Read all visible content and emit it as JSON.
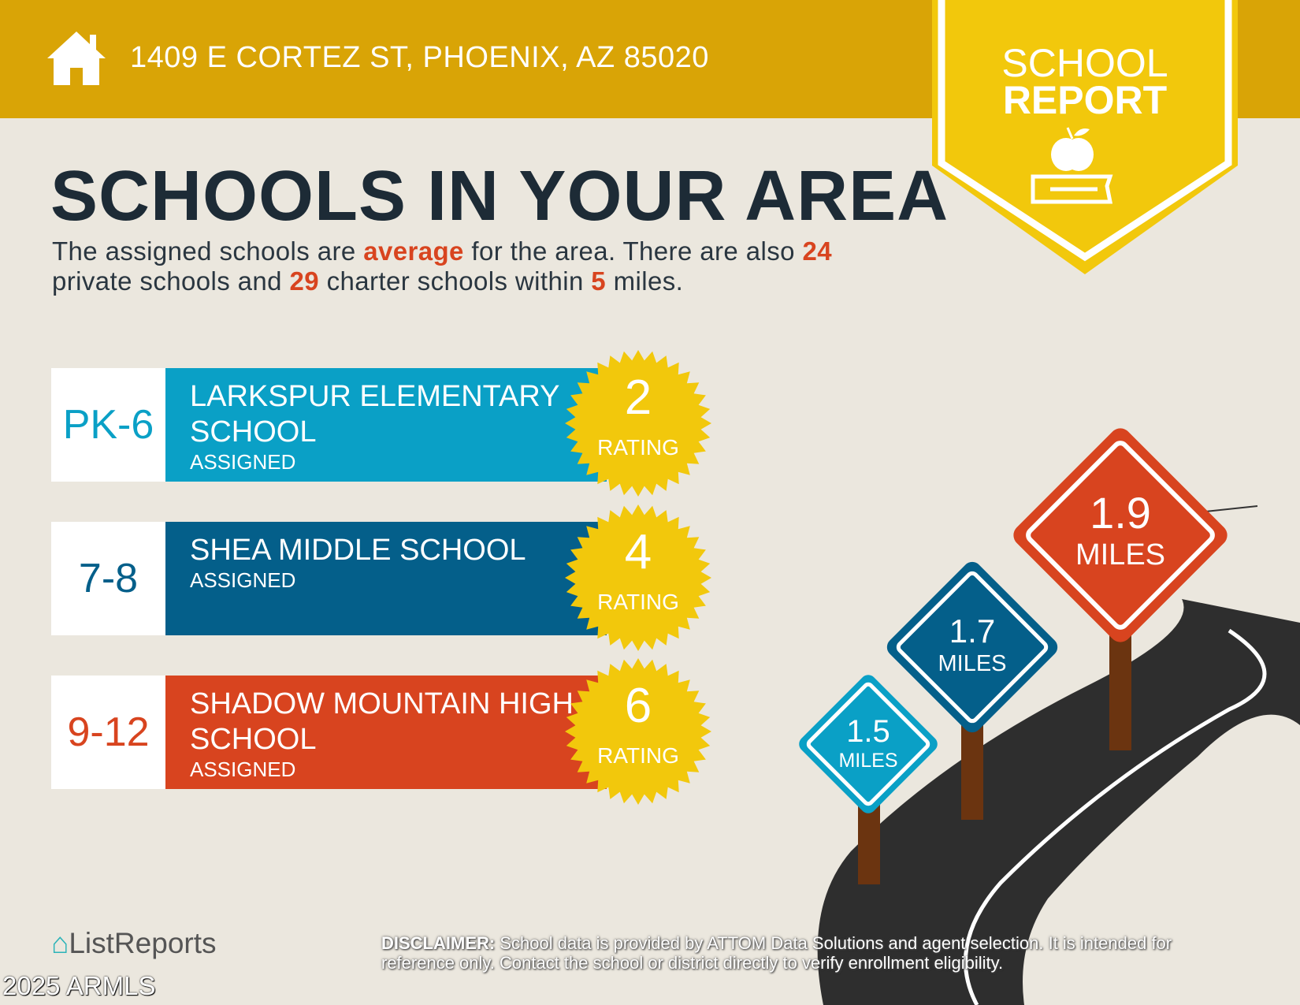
{
  "header": {
    "address": "1409 E CORTEZ ST, PHOENIX, AZ 85020",
    "icon": "house-icon",
    "color": "#d9a406"
  },
  "badge": {
    "line1": "SCHOOL",
    "line2": "REPORT",
    "icon": "apple-on-book-icon",
    "color": "#f2c80c"
  },
  "main": {
    "title": "SCHOOLS IN YOUR AREA",
    "summary": {
      "p1": "The assigned schools are ",
      "quality": "average",
      "p2": " for the area. There are also ",
      "private_count": "24",
      "p3": " private schools and ",
      "charter_count": "29",
      "p4": " charter schools within ",
      "miles": "5",
      "p5": " miles."
    }
  },
  "schools": [
    {
      "grades": "PK-6",
      "name": "LARKSPUR ELEMENTARY SCHOOL",
      "status": "ASSIGNED",
      "rating": "2",
      "rating_label": "RATING",
      "distance": "1.5",
      "distance_unit": "MILES",
      "color": "#0aa0c6"
    },
    {
      "grades": "7-8",
      "name": "SHEA MIDDLE SCHOOL",
      "status": "ASSIGNED",
      "rating": "4",
      "rating_label": "RATING",
      "distance": "1.7",
      "distance_unit": "MILES",
      "color": "#045f8a"
    },
    {
      "grades": "9-12",
      "name": "SHADOW MOUNTAIN HIGH SCHOOL",
      "status": "ASSIGNED",
      "rating": "6",
      "rating_label": "RATING",
      "distance": "1.9",
      "distance_unit": "MILES",
      "color": "#d8441f"
    }
  ],
  "footer": {
    "logo": "ListReports",
    "watermark": "2025 ARMLS",
    "disclaimer_label": "DISCLAIMER:",
    "disclaimer_text": " School data is provided by ATTOM Data Solutions and agent selection. It is intended for reference only. Contact the school or district directly to verify enrollment eligibility."
  }
}
